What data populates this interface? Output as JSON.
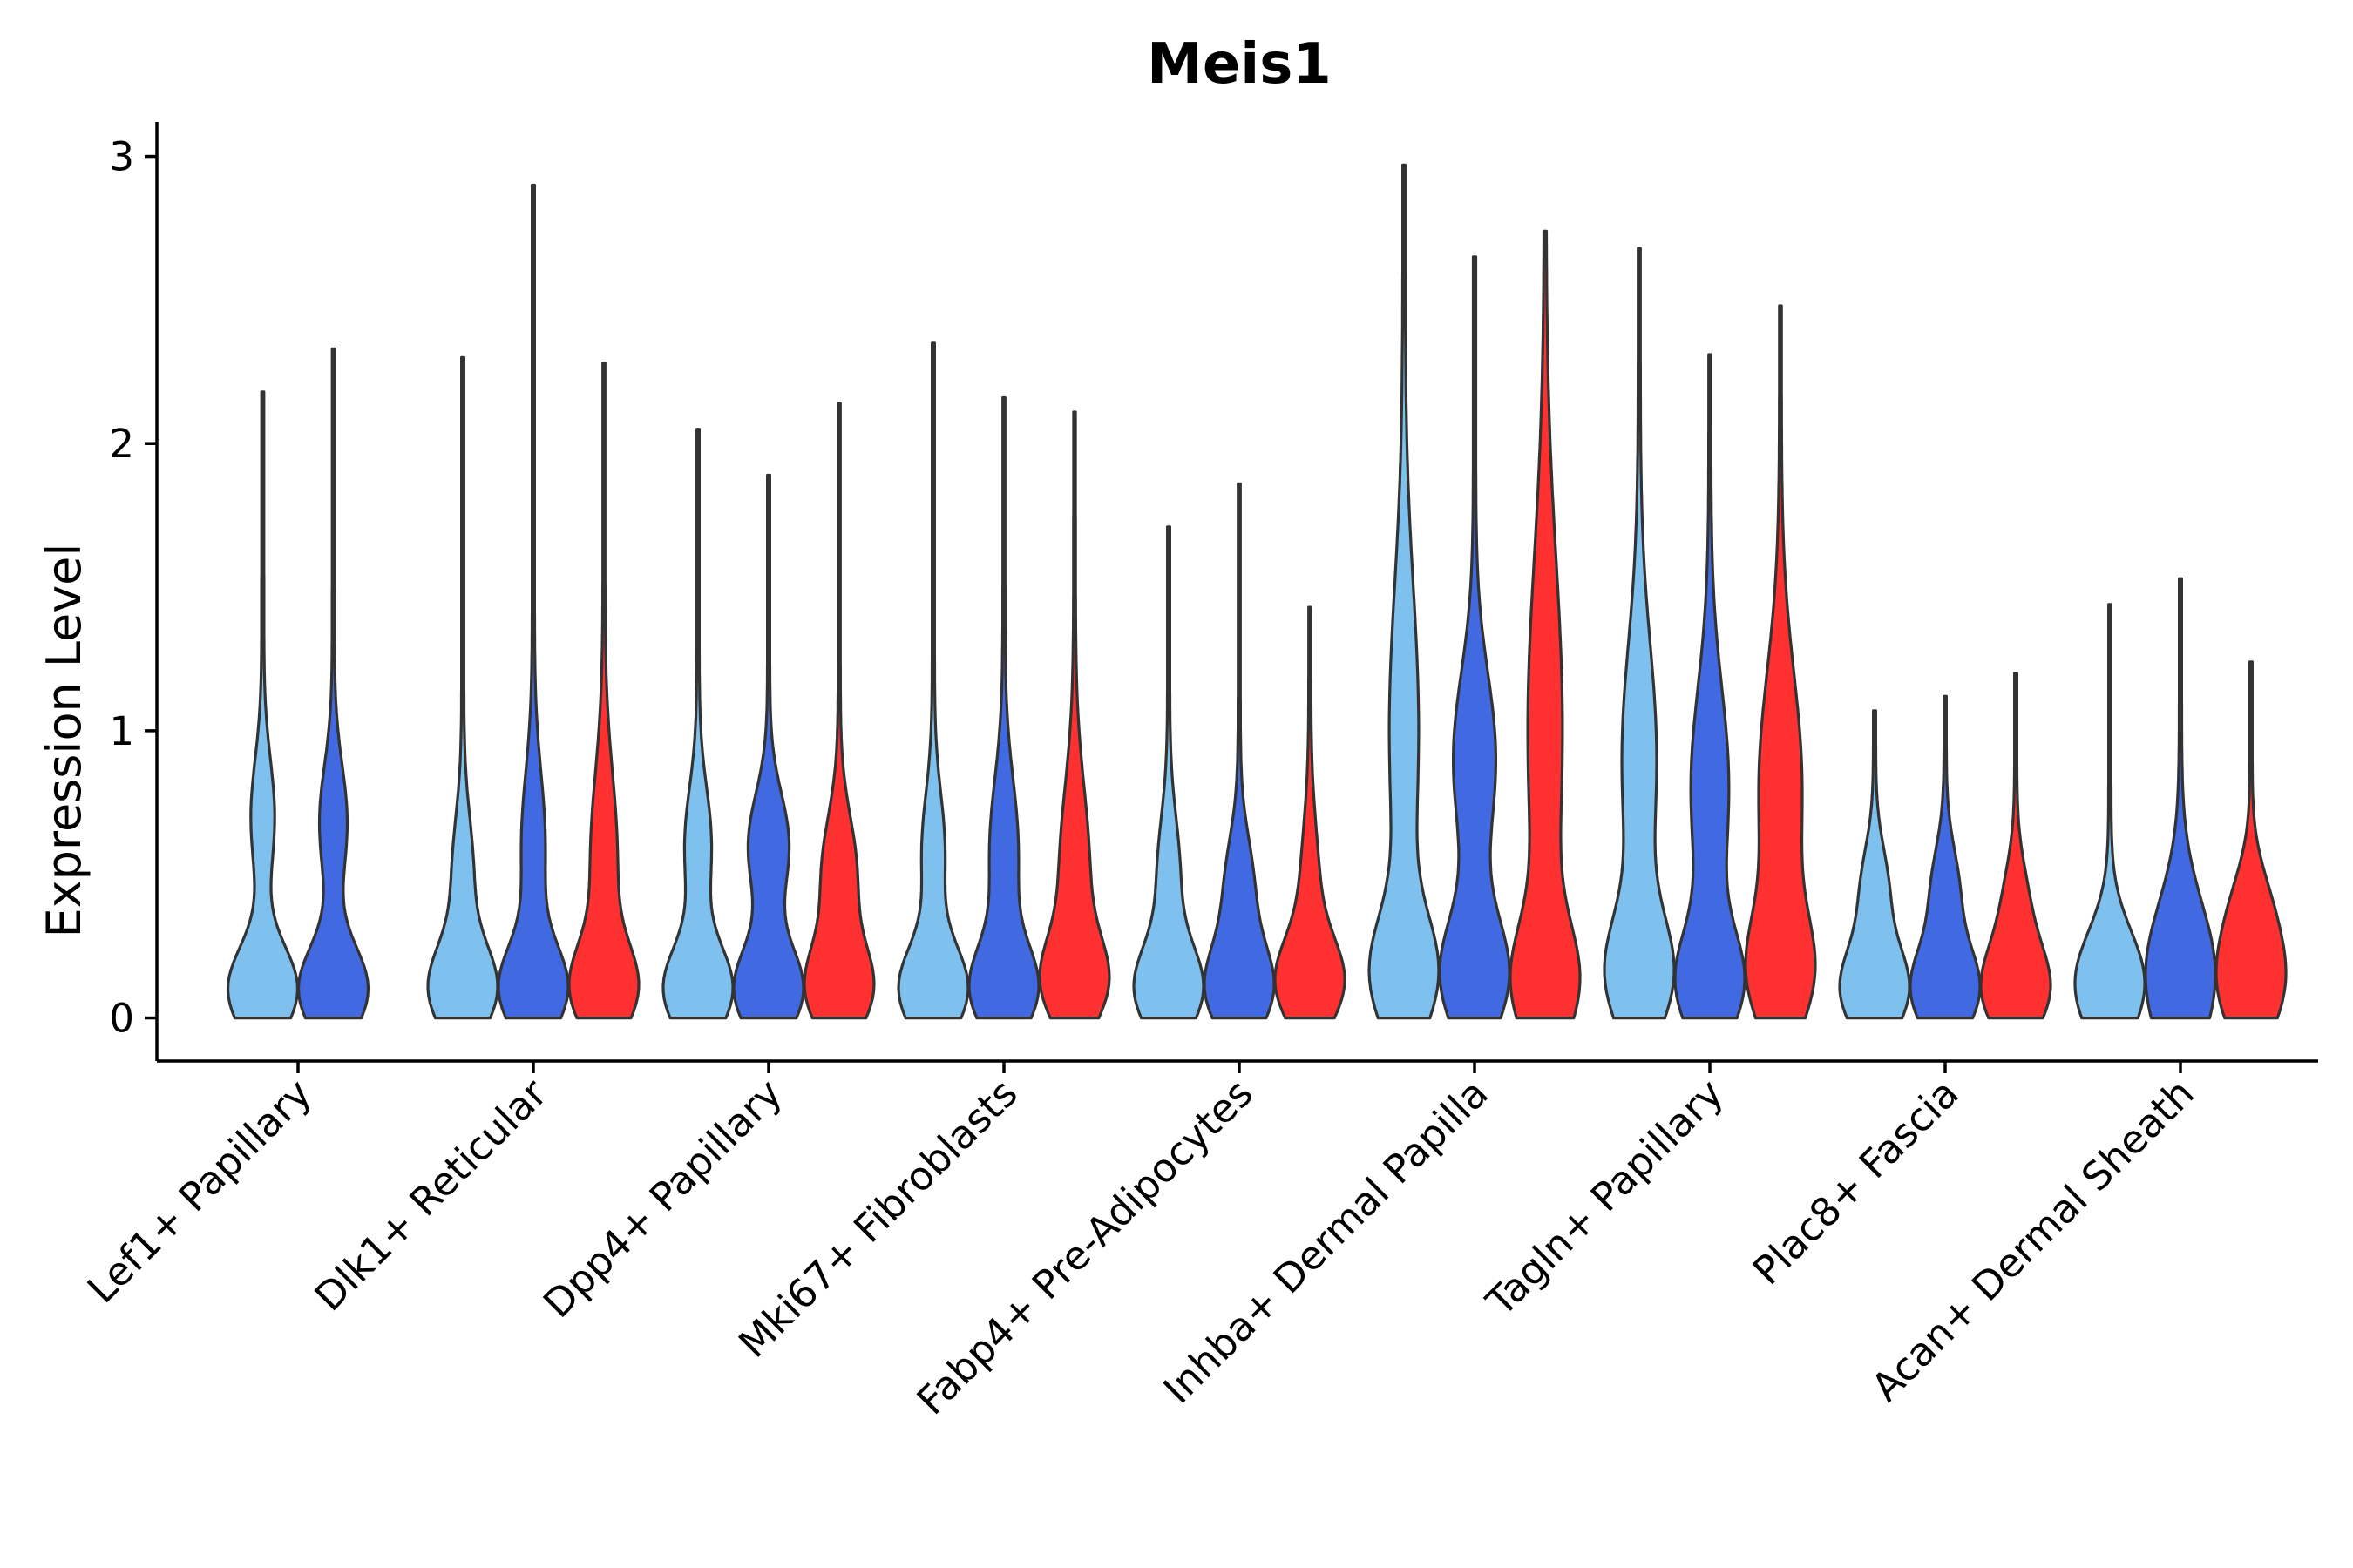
{
  "chart_data": {
    "type": "violin",
    "title": "Meis1",
    "xlabel": "",
    "ylabel": "Expression Level",
    "ylim": [
      -0.15,
      3.12
    ],
    "yticks": [
      0,
      1,
      2,
      3
    ],
    "tick_labels": [
      "0",
      "1",
      "2",
      "3"
    ],
    "colors": {
      "light": "#7EC0EE",
      "mid": "#4169E1",
      "red": "#FF3030"
    },
    "groups": [
      {
        "label": "Lef1+ Papillary",
        "violins": [
          {
            "color": "light",
            "max": 2.18,
            "modes": [
              [
                0.1,
                1.0,
                0.15
              ],
              [
                0.7,
                0.32,
                0.2
              ]
            ]
          },
          {
            "color": "mid",
            "max": 2.33,
            "modes": [
              [
                0.1,
                1.0,
                0.15
              ],
              [
                0.68,
                0.38,
                0.2
              ]
            ]
          }
        ]
      },
      {
        "label": "Dlk1+ Reticular",
        "violins": [
          {
            "color": "light",
            "max": 2.3,
            "modes": [
              [
                0.1,
                0.95,
                0.15
              ],
              [
                0.5,
                0.28,
                0.2
              ]
            ]
          },
          {
            "color": "mid",
            "max": 2.9,
            "modes": [
              [
                0.1,
                0.95,
                0.15
              ],
              [
                0.6,
                0.32,
                0.25
              ]
            ]
          },
          {
            "color": "red",
            "max": 2.28,
            "modes": [
              [
                0.1,
                0.95,
                0.15
              ],
              [
                0.55,
                0.4,
                0.3
              ]
            ]
          }
        ]
      },
      {
        "label": "Dpp4+ Papillary",
        "violins": [
          {
            "color": "light",
            "max": 2.05,
            "modes": [
              [
                0.1,
                0.95,
                0.15
              ],
              [
                0.6,
                0.35,
                0.2
              ]
            ]
          },
          {
            "color": "mid",
            "max": 1.89,
            "modes": [
              [
                0.1,
                0.95,
                0.15
              ],
              [
                0.6,
                0.55,
                0.18
              ]
            ]
          },
          {
            "color": "red",
            "max": 2.14,
            "modes": [
              [
                0.1,
                0.95,
                0.15
              ],
              [
                0.5,
                0.5,
                0.2
              ]
            ]
          }
        ]
      },
      {
        "label": "Mki67+ Fibroblasts",
        "violins": [
          {
            "color": "light",
            "max": 2.35,
            "modes": [
              [
                0.1,
                0.95,
                0.15
              ],
              [
                0.58,
                0.3,
                0.2
              ]
            ]
          },
          {
            "color": "mid",
            "max": 2.16,
            "modes": [
              [
                0.1,
                0.95,
                0.15
              ],
              [
                0.58,
                0.4,
                0.25
              ]
            ]
          },
          {
            "color": "red",
            "max": 2.11,
            "modes": [
              [
                0.12,
                0.95,
                0.15
              ],
              [
                0.5,
                0.5,
                0.3
              ]
            ]
          }
        ]
      },
      {
        "label": "Fabp4+ Pre-Adipocytes",
        "violins": [
          {
            "color": "light",
            "max": 1.71,
            "modes": [
              [
                0.1,
                0.95,
                0.15
              ],
              [
                0.5,
                0.3,
                0.2
              ]
            ]
          },
          {
            "color": "mid",
            "max": 1.86,
            "modes": [
              [
                0.1,
                0.95,
                0.15
              ],
              [
                0.45,
                0.4,
                0.18
              ]
            ]
          },
          {
            "color": "red",
            "max": 1.43,
            "modes": [
              [
                0.12,
                0.95,
                0.15
              ],
              [
                0.45,
                0.25,
                0.22
              ]
            ]
          }
        ]
      },
      {
        "label": "Inhba+ Dermal Papilla",
        "violins": [
          {
            "color": "light",
            "max": 2.97,
            "modes": [
              [
                0.15,
                0.9,
                0.2
              ],
              [
                1.0,
                0.4,
                0.5
              ]
            ]
          },
          {
            "color": "mid",
            "max": 2.65,
            "modes": [
              [
                0.15,
                0.9,
                0.2
              ],
              [
                0.9,
                0.55,
                0.3
              ]
            ]
          },
          {
            "color": "red",
            "max": 2.74,
            "modes": [
              [
                0.12,
                0.95,
                0.2
              ],
              [
                1.0,
                0.55,
                0.6
              ]
            ]
          }
        ]
      },
      {
        "label": "Tagln+ Papillary",
        "violins": [
          {
            "color": "light",
            "max": 2.68,
            "modes": [
              [
                0.15,
                0.95,
                0.2
              ],
              [
                0.9,
                0.5,
                0.4
              ]
            ]
          },
          {
            "color": "mid",
            "max": 2.31,
            "modes": [
              [
                0.12,
                0.95,
                0.18
              ],
              [
                0.8,
                0.55,
                0.35
              ]
            ]
          },
          {
            "color": "red",
            "max": 2.48,
            "modes": [
              [
                0.15,
                0.95,
                0.2
              ],
              [
                0.8,
                0.7,
                0.4
              ]
            ]
          }
        ]
      },
      {
        "label": "Plac8+ Fascia",
        "violins": [
          {
            "color": "light",
            "max": 1.07,
            "modes": [
              [
                0.1,
                0.95,
                0.15
              ],
              [
                0.45,
                0.35,
                0.15
              ]
            ]
          },
          {
            "color": "mid",
            "max": 1.12,
            "modes": [
              [
                0.1,
                0.95,
                0.15
              ],
              [
                0.45,
                0.35,
                0.15
              ]
            ]
          },
          {
            "color": "red",
            "max": 1.2,
            "modes": [
              [
                0.1,
                0.95,
                0.15
              ],
              [
                0.4,
                0.3,
                0.15
              ]
            ]
          }
        ]
      },
      {
        "label": "Acan+ Dermal Sheath",
        "violins": [
          {
            "color": "light",
            "max": 1.44,
            "modes": [
              [
                0.12,
                0.95,
                0.18
              ]
            ]
          },
          {
            "color": "mid",
            "max": 1.53,
            "modes": [
              [
                0.15,
                0.95,
                0.25
              ]
            ]
          },
          {
            "color": "red",
            "max": 1.24,
            "modes": [
              [
                0.12,
                0.9,
                0.18
              ],
              [
                0.4,
                0.35,
                0.15
              ]
            ]
          }
        ]
      }
    ]
  }
}
